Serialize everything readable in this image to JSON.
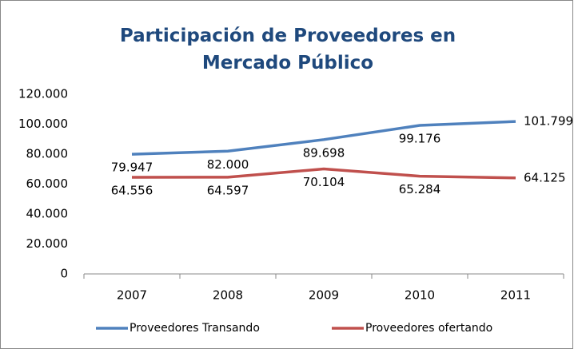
{
  "chart_data": {
    "type": "line",
    "title": "Participación de Proveedores en Mercado Público",
    "categories": [
      "2007",
      "2008",
      "2009",
      "2010",
      "2011"
    ],
    "series": [
      {
        "name": "Proveedores Transando",
        "color": "#4f81bd",
        "values": [
          79947,
          82000,
          89698,
          99176,
          101799
        ],
        "value_labels": [
          "79.947",
          "82.000",
          "89.698",
          "99.176",
          "101.799"
        ]
      },
      {
        "name": "Proveedores ofertando",
        "color": "#c0504d",
        "values": [
          64556,
          64597,
          70104,
          65284,
          64125
        ],
        "value_labels": [
          "64.556",
          "64.597",
          "70.104",
          "65.284",
          "64.125"
        ]
      }
    ],
    "ylim": [
      0,
      120000
    ],
    "yticks": [
      0,
      {
        "value": 20000,
        "label": "20.000"
      },
      {
        "value": 40000,
        "label": "40.000"
      },
      {
        "value": 60000,
        "label": "60.000"
      },
      {
        "value": 80000,
        "label": "80.000"
      },
      {
        "value": 100000,
        "label": "100.000"
      },
      {
        "value": 120000,
        "label": "120.000"
      }
    ],
    "grid": false,
    "legend": "bottom"
  }
}
